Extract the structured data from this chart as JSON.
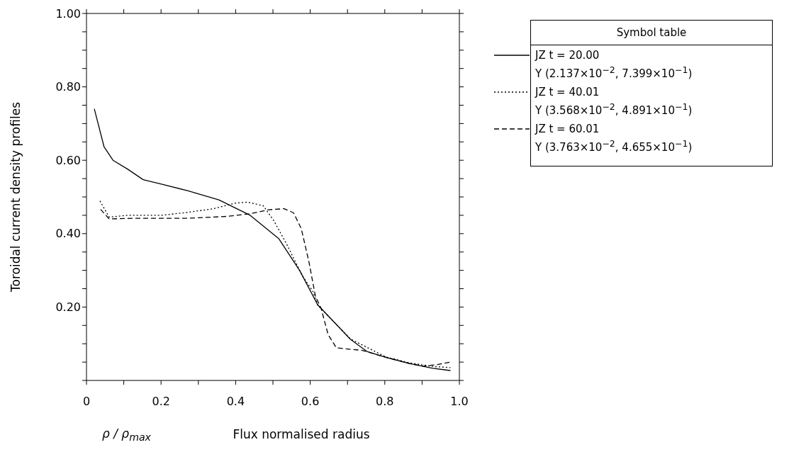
{
  "chart_data": {
    "type": "line",
    "xlabel": "Flux normalised radius",
    "ylabel": "Toroidal current density profiles",
    "legend_title": "Symbol table",
    "legend": "right",
    "grid": false,
    "marker": "none",
    "xlim": [
      0,
      1.0
    ],
    "xticks": [
      0,
      {
        "value": 0.1,
        "label": null
      },
      0.2,
      {
        "value": 0.3,
        "label": null
      },
      0.4,
      {
        "value": 0.5,
        "label": null
      },
      0.6,
      {
        "value": 0.7,
        "label": null
      },
      0.8,
      {
        "value": 0.9,
        "label": null
      },
      {
        "value": 1.0,
        "label": "1.0"
      }
    ],
    "ylim": [
      0,
      1.0
    ],
    "yticks": [
      {
        "value": 0,
        "label": null
      },
      {
        "value": 0.05,
        "label": null
      },
      {
        "value": 0.1,
        "label": null
      },
      {
        "value": 0.15,
        "label": null
      },
      {
        "value": 0.2,
        "label": "0.20"
      },
      {
        "value": 0.25,
        "label": null
      },
      {
        "value": 0.3,
        "label": null
      },
      {
        "value": 0.35,
        "label": null
      },
      {
        "value": 0.4,
        "label": "0.40"
      },
      {
        "value": 0.45,
        "label": null
      },
      {
        "value": 0.5,
        "label": null
      },
      {
        "value": 0.55,
        "label": null
      },
      {
        "value": 0.6,
        "label": "0.60"
      },
      {
        "value": 0.65,
        "label": null
      },
      {
        "value": 0.7,
        "label": null
      },
      {
        "value": 0.75,
        "label": null
      },
      {
        "value": 0.8,
        "label": "0.80"
      },
      {
        "value": 0.85,
        "label": null
      },
      {
        "value": 0.9,
        "label": null
      },
      {
        "value": 0.95,
        "label": null
      },
      {
        "value": 1.0,
        "label": "1.00"
      }
    ],
    "series": [
      {
        "name": "JZ t = 20.00",
        "color": "#000000",
        "line_style": "solid",
        "x": [
          0.021,
          0.047,
          0.071,
          0.11,
          0.152,
          0.201,
          0.271,
          0.355,
          0.439,
          0.516,
          0.572,
          0.62,
          0.708,
          0.752,
          0.803,
          0.866,
          0.929,
          0.976
        ],
        "values": [
          0.74,
          0.637,
          0.6,
          0.576,
          0.547,
          0.535,
          0.517,
          0.492,
          0.45,
          0.386,
          0.299,
          0.206,
          0.112,
          0.079,
          0.063,
          0.046,
          0.033,
          0.027
        ]
      },
      {
        "name": "JZ t = 40.01",
        "color": "#000000",
        "line_style": "dotted",
        "x": [
          0.036,
          0.061,
          0.11,
          0.201,
          0.271,
          0.341,
          0.397,
          0.432,
          0.474,
          0.502,
          0.537,
          0.579,
          0.607,
          0.62,
          0.708,
          0.803,
          0.866,
          0.929,
          0.976
        ],
        "values": [
          0.489,
          0.445,
          0.45,
          0.45,
          0.458,
          0.468,
          0.483,
          0.486,
          0.476,
          0.436,
          0.371,
          0.285,
          0.243,
          0.205,
          0.113,
          0.064,
          0.048,
          0.038,
          0.035
        ]
      },
      {
        "name": "JZ t = 60.01",
        "color": "#000000",
        "line_style": "dashed",
        "x": [
          0.038,
          0.061,
          0.131,
          0.271,
          0.376,
          0.439,
          0.488,
          0.53,
          0.555,
          0.576,
          0.597,
          0.614,
          0.629,
          0.648,
          0.67,
          0.696,
          0.74,
          0.803,
          0.866,
          0.904,
          0.941,
          0.976
        ],
        "values": [
          0.466,
          0.44,
          0.442,
          0.442,
          0.447,
          0.454,
          0.465,
          0.468,
          0.457,
          0.414,
          0.321,
          0.229,
          0.197,
          0.125,
          0.089,
          0.086,
          0.082,
          0.063,
          0.046,
          0.039,
          0.043,
          0.05
        ]
      }
    ],
    "annotations": [
      "Y (2.137×10$^{−2}$, 7.399×10$^{−1}$)",
      "Y (3.568×10$^{−2}$, 4.891×10$^{−1}$)",
      "Y (3.763×10$^{−2}$, 4.655×10$^{−1}$)",
      "ρ / ρ$_{max}$"
    ]
  }
}
